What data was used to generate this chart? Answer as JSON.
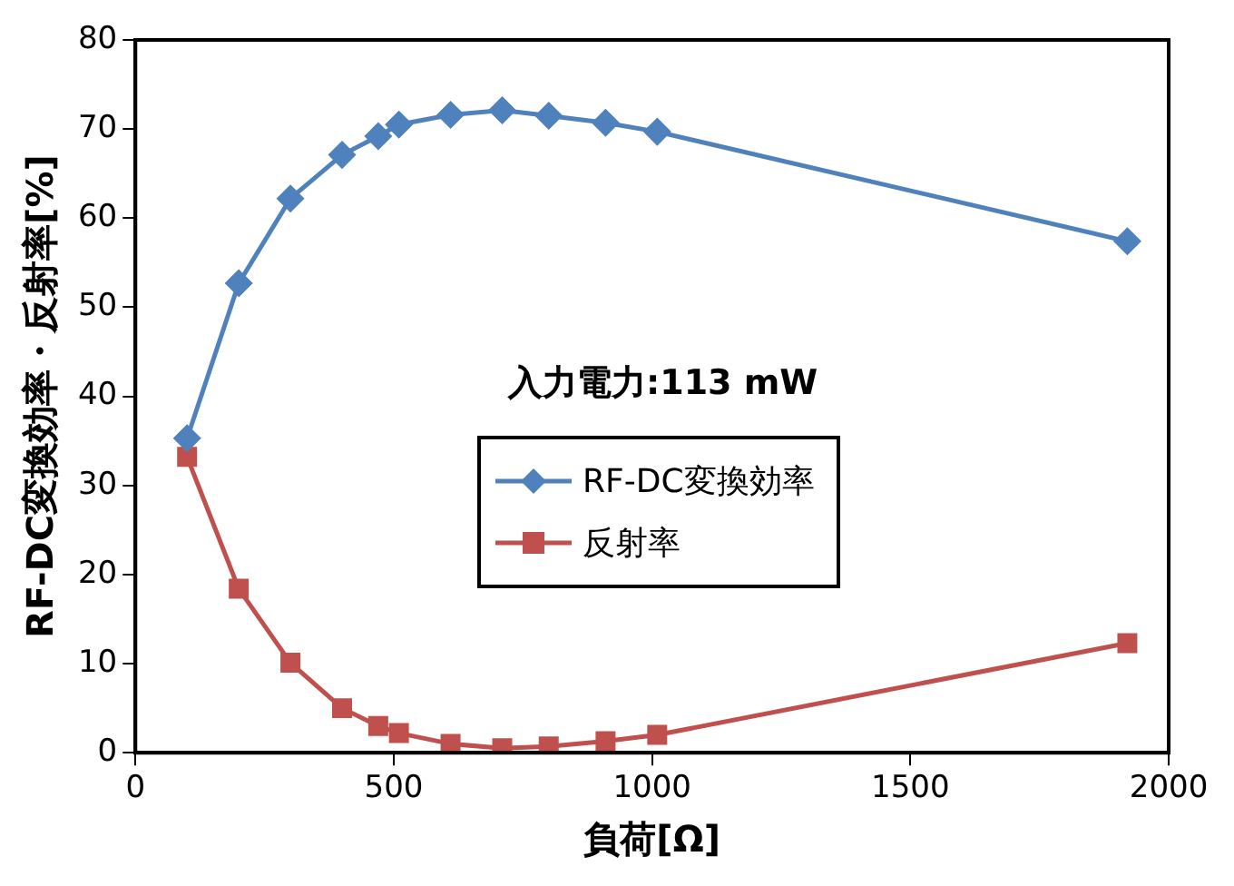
{
  "chart_data": {
    "type": "line",
    "xlabel": "負荷[Ω]",
    "ylabel": "RF-DC変換効率・反射率[%]",
    "annotations": [
      "入力電力:113 mW"
    ],
    "x": [
      100,
      200,
      300,
      400,
      470,
      510,
      610,
      710,
      800,
      910,
      1010,
      1920
    ],
    "series": [
      {
        "name": "RF-DC変換効率",
        "color": "#4f81bd",
        "marker": "diamond",
        "values": [
          35.3,
          52.7,
          62.2,
          67.1,
          69.2,
          70.5,
          71.6,
          72.1,
          71.5,
          70.7,
          69.7,
          57.4
        ]
      },
      {
        "name": "反射率",
        "color": "#c0504d",
        "marker": "square",
        "values": [
          33.2,
          18.4,
          10.1,
          5.0,
          3.0,
          2.2,
          1.0,
          0.5,
          0.7,
          1.3,
          2.0,
          12.3
        ]
      }
    ],
    "xlim": [
      0,
      2000
    ],
    "xticks": [
      0,
      500,
      1000,
      1500,
      2000
    ],
    "ylim": [
      0,
      80
    ],
    "yticks": [
      0,
      10,
      20,
      30,
      40,
      50,
      60,
      70,
      80
    ],
    "grid": false,
    "legend": "center",
    "line_style": "solid"
  }
}
